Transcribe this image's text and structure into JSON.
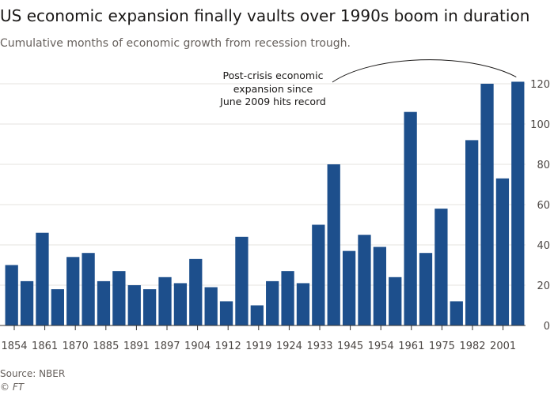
{
  "header": {
    "title": "US economic expansion finally vaults over 1990s boom in duration",
    "subtitle": "Cumulative months of economic growth from recession trough."
  },
  "footer": {
    "source": "Source: NBER",
    "credit": "© FT"
  },
  "colors": {
    "bar": "#1d4f8c",
    "grid": "#e6e3df",
    "axis": "#33302e"
  },
  "chart_data": {
    "type": "bar",
    "title": "US economic expansion finally vaults over 1990s boom in duration",
    "subtitle": "Cumulative months of economic growth from recession trough.",
    "xlabel": "",
    "ylabel": "",
    "ylim": [
      0,
      120
    ],
    "yticks": [
      0,
      20,
      40,
      60,
      80,
      100,
      120
    ],
    "y_axis_side": "right",
    "grid": true,
    "x_tick_labels": [
      "1854",
      "1861",
      "1870",
      "1885",
      "1891",
      "1897",
      "1904",
      "1912",
      "1919",
      "1924",
      "1933",
      "1945",
      "1954",
      "1961",
      "1975",
      "1982",
      "2001"
    ],
    "values": [
      30,
      22,
      46,
      18,
      34,
      36,
      22,
      27,
      20,
      18,
      24,
      21,
      33,
      19,
      12,
      44,
      10,
      22,
      27,
      21,
      50,
      80,
      37,
      45,
      39,
      24,
      106,
      36,
      58,
      12,
      92,
      120,
      73,
      121
    ],
    "annotation": {
      "lines": [
        "Post-crisis economic",
        "expansion since",
        "June 2009 hits record"
      ],
      "bar_index": 33
    }
  }
}
